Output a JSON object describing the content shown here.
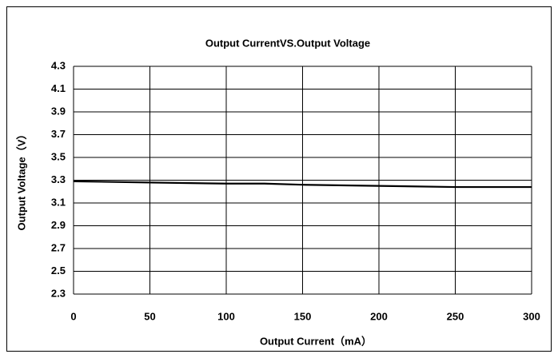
{
  "chart_data": {
    "type": "line",
    "title": "Output CurrentVS.Output Voltage",
    "x_label": "Output Current（mA）",
    "y_label": "Output Voltage（V）",
    "x": [
      0,
      50,
      100,
      125,
      150,
      200,
      250,
      300
    ],
    "series": [
      {
        "name": "Output Voltage",
        "color": "#000000",
        "values": [
          3.29,
          3.28,
          3.27,
          3.27,
          3.26,
          3.25,
          3.24,
          3.24
        ]
      }
    ],
    "xlim": [
      0,
      300
    ],
    "xticks": [
      0,
      50,
      100,
      150,
      200,
      250,
      300
    ],
    "ylim": [
      2.3,
      4.3
    ],
    "yticks": [
      2.3,
      2.5,
      2.7,
      2.9,
      3.1,
      3.3,
      3.5,
      3.7,
      3.9,
      4.1,
      4.3
    ],
    "grid": true
  }
}
